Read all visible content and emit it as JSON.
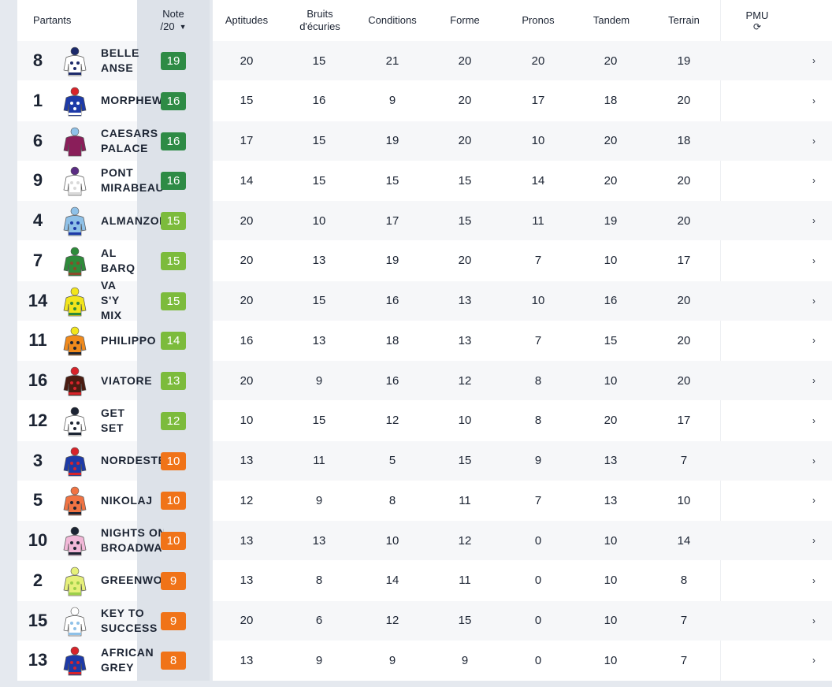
{
  "header": {
    "partants": "Partants",
    "note_line1": "Note",
    "note_line2": "/20",
    "aptitudes": "Aptitudes",
    "bruits_line1": "Bruits",
    "bruits_line2": "d'écuries",
    "conditions": "Conditions",
    "forme": "Forme",
    "pronos": "Pronos",
    "tandem": "Tandem",
    "terrain": "Terrain",
    "pmu": "PMU"
  },
  "icons": {
    "sort": "caret-down-icon",
    "refresh": "refresh-icon",
    "row_action": "chevron-right-icon"
  },
  "colors": {
    "badge_dark_green": "#2e8b45",
    "badge_light_green": "#7cbb3c",
    "badge_orange": "#f07318"
  },
  "rows": [
    {
      "num": "8",
      "name": "BELLE\nANSE",
      "note": "19",
      "level": "dark",
      "aptitudes": "20",
      "bruits": "15",
      "conditions": "21",
      "forme": "20",
      "pronos": "20",
      "tandem": "20",
      "terrain": "19",
      "silk": {
        "body": "#ffffff",
        "accent": "#1c2a6b",
        "cap": "#1c2a6b"
      }
    },
    {
      "num": "1",
      "name": "MORPHEW",
      "note": "16",
      "level": "dark",
      "aptitudes": "15",
      "bruits": "16",
      "conditions": "9",
      "forme": "20",
      "pronos": "17",
      "tandem": "18",
      "terrain": "20",
      "silk": {
        "body": "#1d3aa8",
        "accent": "#ffffff",
        "cap": "#d8232a"
      }
    },
    {
      "num": "6",
      "name": "CAESARS\nPALACE",
      "note": "16",
      "level": "dark",
      "aptitudes": "17",
      "bruits": "15",
      "conditions": "19",
      "forme": "20",
      "pronos": "10",
      "tandem": "20",
      "terrain": "18",
      "silk": {
        "body": "#8a1e5a",
        "accent": "#8a1e5a",
        "cap": "#8fc1e8"
      }
    },
    {
      "num": "9",
      "name": "PONT\nMIRABEAU",
      "note": "16",
      "level": "dark",
      "aptitudes": "14",
      "bruits": "15",
      "conditions": "15",
      "forme": "15",
      "pronos": "14",
      "tandem": "20",
      "terrain": "20",
      "silk": {
        "body": "#ffffff",
        "accent": "#d9d9d9",
        "cap": "#5b2c83"
      }
    },
    {
      "num": "4",
      "name": "ALMANZOR",
      "note": "15",
      "level": "light",
      "aptitudes": "20",
      "bruits": "10",
      "conditions": "17",
      "forme": "15",
      "pronos": "11",
      "tandem": "19",
      "terrain": "20",
      "silk": {
        "body": "#8fc1e8",
        "accent": "#1d3aa8",
        "cap": "#8fc1e8"
      }
    },
    {
      "num": "7",
      "name": "AL\nBARQ",
      "note": "15",
      "level": "light",
      "aptitudes": "20",
      "bruits": "13",
      "conditions": "19",
      "forme": "20",
      "pronos": "7",
      "tandem": "10",
      "terrain": "17",
      "silk": {
        "body": "#2e8b3a",
        "accent": "#8a4b2a",
        "cap": "#2e8b3a"
      }
    },
    {
      "num": "14",
      "name": "VA\nS'Y\nMIX",
      "note": "15",
      "level": "light",
      "aptitudes": "20",
      "bruits": "15",
      "conditions": "16",
      "forme": "13",
      "pronos": "10",
      "tandem": "16",
      "terrain": "20",
      "silk": {
        "body": "#f2e51c",
        "accent": "#2e8b3a",
        "cap": "#f2e51c"
      }
    },
    {
      "num": "11",
      "name": "PHILIPPO",
      "note": "14",
      "level": "light",
      "aptitudes": "16",
      "bruits": "13",
      "conditions": "18",
      "forme": "13",
      "pronos": "7",
      "tandem": "15",
      "terrain": "20",
      "silk": {
        "body": "#f08a1c",
        "accent": "#1c2433",
        "cap": "#f2e51c"
      }
    },
    {
      "num": "16",
      "name": "VIATORE",
      "note": "13",
      "level": "light",
      "aptitudes": "20",
      "bruits": "9",
      "conditions": "16",
      "forme": "12",
      "pronos": "8",
      "tandem": "10",
      "terrain": "20",
      "silk": {
        "body": "#4a1c12",
        "accent": "#d8232a",
        "cap": "#d8232a"
      }
    },
    {
      "num": "12",
      "name": "GET\nSET",
      "note": "12",
      "level": "light",
      "aptitudes": "10",
      "bruits": "15",
      "conditions": "12",
      "forme": "10",
      "pronos": "8",
      "tandem": "20",
      "terrain": "17",
      "silk": {
        "body": "#ffffff",
        "accent": "#1c2433",
        "cap": "#1c2433"
      }
    },
    {
      "num": "3",
      "name": "NORDESTE",
      "note": "10",
      "level": "orange",
      "aptitudes": "13",
      "bruits": "11",
      "conditions": "5",
      "forme": "15",
      "pronos": "9",
      "tandem": "13",
      "terrain": "7",
      "silk": {
        "body": "#1d3aa8",
        "accent": "#d8232a",
        "cap": "#d8232a"
      }
    },
    {
      "num": "5",
      "name": "NIKOLAJ",
      "note": "10",
      "level": "orange",
      "aptitudes": "12",
      "bruits": "9",
      "conditions": "8",
      "forme": "11",
      "pronos": "7",
      "tandem": "13",
      "terrain": "10",
      "silk": {
        "body": "#f07343",
        "accent": "#1c2433",
        "cap": "#f07343"
      }
    },
    {
      "num": "10",
      "name": "NIGHTS ON\nBROADWAY",
      "note": "10",
      "level": "orange",
      "aptitudes": "13",
      "bruits": "13",
      "conditions": "10",
      "forme": "12",
      "pronos": "0",
      "tandem": "10",
      "terrain": "14",
      "silk": {
        "body": "#f2b8d8",
        "accent": "#1c2433",
        "cap": "#1c2433"
      }
    },
    {
      "num": "2",
      "name": "GREENWOOD",
      "note": "9",
      "level": "orange",
      "aptitudes": "13",
      "bruits": "8",
      "conditions": "14",
      "forme": "11",
      "pronos": "0",
      "tandem": "10",
      "terrain": "8",
      "silk": {
        "body": "#e6f07a",
        "accent": "#9ccf4a",
        "cap": "#e6f07a"
      }
    },
    {
      "num": "15",
      "name": "KEY TO\nSUCCESS",
      "note": "9",
      "level": "orange",
      "aptitudes": "20",
      "bruits": "6",
      "conditions": "12",
      "forme": "15",
      "pronos": "0",
      "tandem": "10",
      "terrain": "7",
      "silk": {
        "body": "#ffffff",
        "accent": "#8fc1e8",
        "cap": "#ffffff"
      }
    },
    {
      "num": "13",
      "name": "AFRICAN\nGREY",
      "note": "8",
      "level": "orange",
      "aptitudes": "13",
      "bruits": "9",
      "conditions": "9",
      "forme": "9",
      "pronos": "0",
      "tandem": "10",
      "terrain": "7",
      "silk": {
        "body": "#1d3aa8",
        "accent": "#d8232a",
        "cap": "#d8232a"
      }
    }
  ]
}
